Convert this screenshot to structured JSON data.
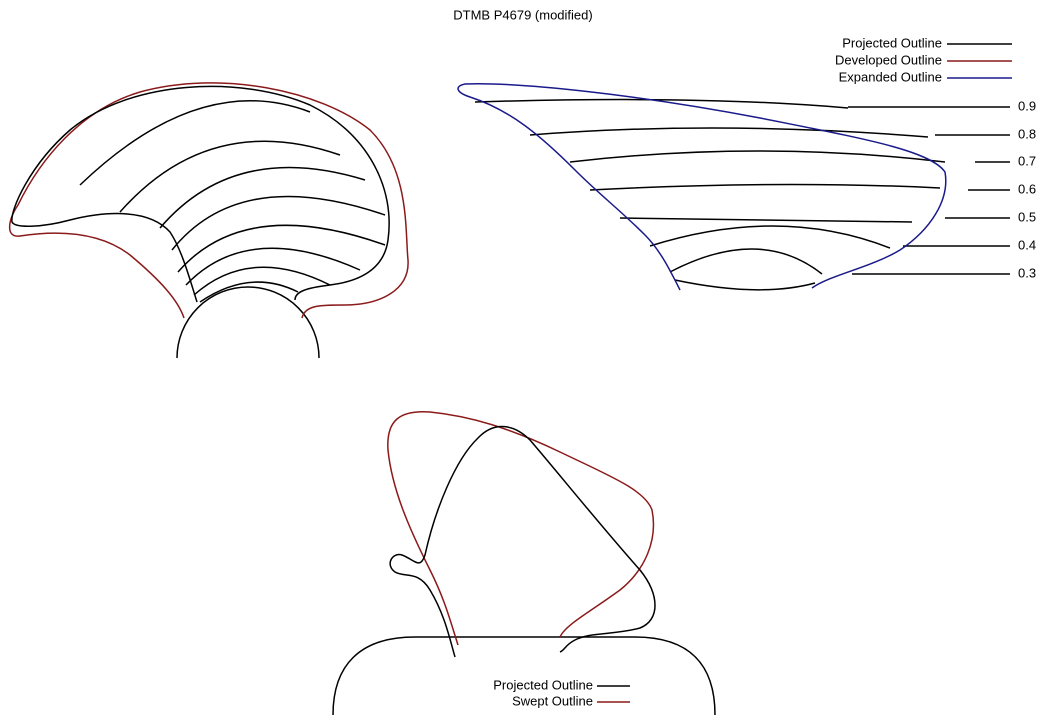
{
  "title": "DTMB  P4679 (modified)",
  "top_legend": [
    "Projected Outline",
    "Developed Outline",
    "Expanded Outline"
  ],
  "radius_labels": [
    "0.9",
    "0.8",
    "0.7",
    "0.6",
    "0.5",
    "0.4",
    "0.3"
  ],
  "bottom_legend": [
    "Projected Outline",
    "Swept Outline"
  ]
}
